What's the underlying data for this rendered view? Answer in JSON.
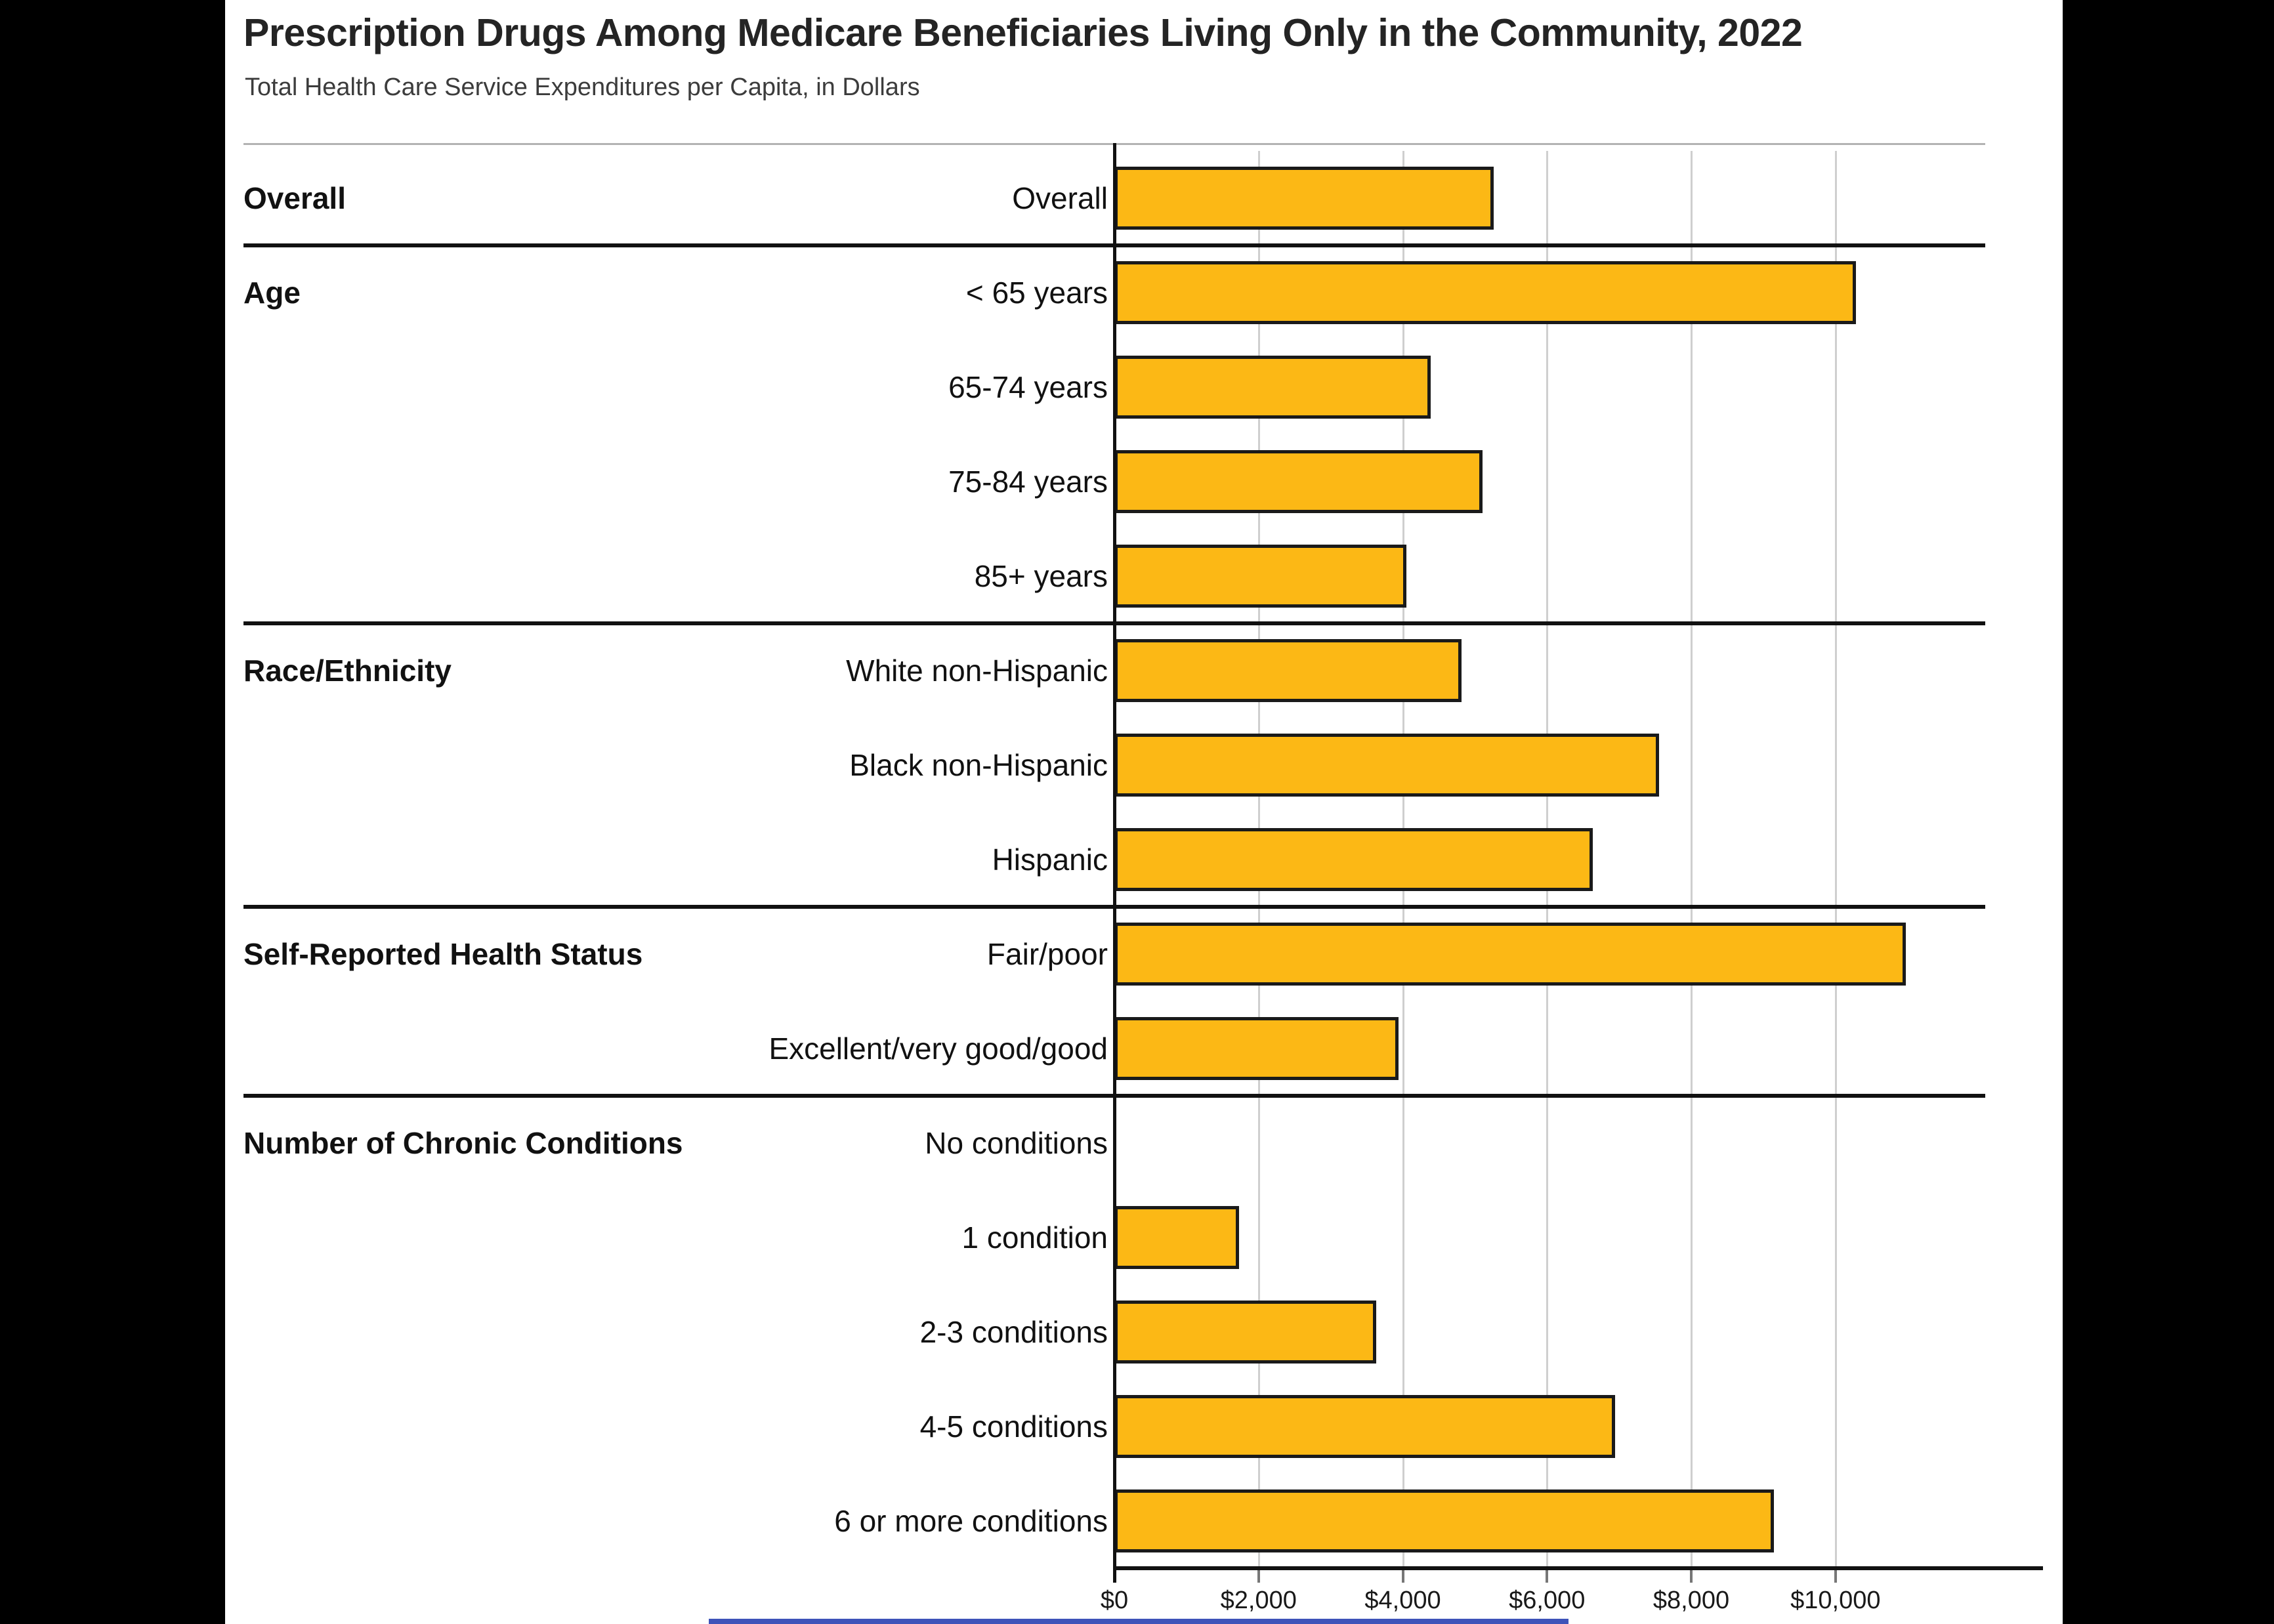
{
  "window": {
    "letterbox_color": "#000000",
    "panel_background": "#ffffff"
  },
  "header": {
    "title": "Prescription Drugs Among Medicare Beneficiaries Living Only in the Community, 2022",
    "subtitle": "Total Health Care Service Expenditures per Capita, in Dollars"
  },
  "chart_data": {
    "type": "bar",
    "orientation": "horizontal",
    "title": "Prescription Drugs Among Medicare Beneficiaries Living Only in the Community, 2022",
    "subtitle": "Total Health Care Service Expenditures per Capita, in Dollars",
    "xlabel": "",
    "ylabel": "",
    "xlim": [
      0,
      11000
    ],
    "grid": true,
    "legend": "none",
    "bar_color": "#FCB815",
    "bar_border_color": "#1A1A1A",
    "gridline_color": "#CFCFCF",
    "separator_color": "#111111",
    "x_ticks": [
      {
        "value": 0,
        "label": "$0"
      },
      {
        "value": 2000,
        "label": "$2,000"
      },
      {
        "value": 4000,
        "label": "$4,000"
      },
      {
        "value": 6000,
        "label": "$6,000"
      },
      {
        "value": 8000,
        "label": "$8,000"
      },
      {
        "value": 10000,
        "label": "$10,000"
      }
    ],
    "groups": [
      {
        "label": "Overall",
        "rows": [
          {
            "label": "Overall",
            "value": 5260
          }
        ]
      },
      {
        "label": "Age",
        "rows": [
          {
            "label": "< 65 years",
            "value": 10280
          },
          {
            "label": "65-74 years",
            "value": 4390
          },
          {
            "label": "75-84 years",
            "value": 5110
          },
          {
            "label": "85+ years",
            "value": 4050
          }
        ]
      },
      {
        "label": "Race/Ethnicity",
        "rows": [
          {
            "label": "White non-Hispanic",
            "value": 4810
          },
          {
            "label": "Black non-Hispanic",
            "value": 7550
          },
          {
            "label": "Hispanic",
            "value": 6630
          }
        ]
      },
      {
        "label": "Self-Reported Health Status",
        "rows": [
          {
            "label": "Fair/poor",
            "value": 10980
          },
          {
            "label": "Excellent/very good/good",
            "value": 3940
          }
        ]
      },
      {
        "label": "Number of Chronic Conditions",
        "rows": [
          {
            "label": "No conditions",
            "value": 0
          },
          {
            "label": "1 condition",
            "value": 1730
          },
          {
            "label": "2-3 conditions",
            "value": 3630
          },
          {
            "label": "4-5 conditions",
            "value": 6940
          },
          {
            "label": "6 or more conditions",
            "value": 9150
          }
        ]
      }
    ]
  },
  "footer": {
    "accent_strip_color": "#3E53B9"
  }
}
